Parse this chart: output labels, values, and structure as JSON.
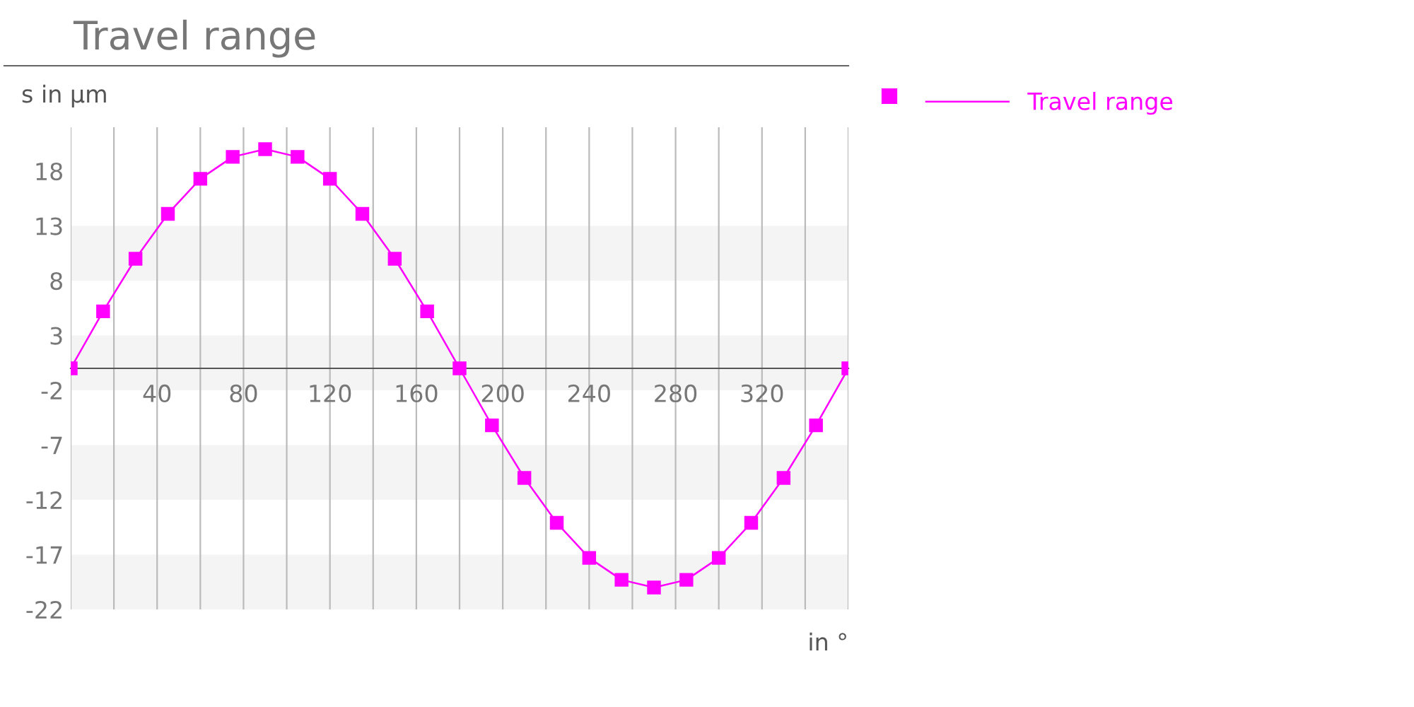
{
  "chart_data": {
    "type": "line",
    "title": "Travel range",
    "xlabel": "in °",
    "ylabel": "s in µm",
    "x": [
      0,
      15,
      30,
      45,
      60,
      75,
      90,
      105,
      120,
      135,
      150,
      165,
      180,
      195,
      210,
      225,
      240,
      255,
      270,
      285,
      300,
      315,
      330,
      345,
      360
    ],
    "series": [
      {
        "name": "Travel range",
        "color": "#ff00ff",
        "values": [
          0,
          5.2,
          10,
          14.1,
          17.3,
          19.3,
          20,
          19.3,
          17.3,
          14.1,
          10,
          5.2,
          0,
          -5.2,
          -10,
          -14.1,
          -17.3,
          -19.3,
          -20,
          -19.3,
          -17.3,
          -14.1,
          -10,
          -5.2,
          0
        ]
      }
    ],
    "marker": "square",
    "line_style": "solid",
    "xlim": [
      0,
      360
    ],
    "xticks": [
      {
        "value": 0,
        "label": null
      },
      {
        "value": 20,
        "label": null
      },
      40,
      {
        "value": 60,
        "label": null
      },
      80,
      {
        "value": 100,
        "label": null
      },
      120,
      {
        "value": 140,
        "label": null
      },
      160,
      {
        "value": 180,
        "label": null
      },
      200,
      {
        "value": 220,
        "label": null
      },
      240,
      {
        "value": 260,
        "label": null
      },
      280,
      {
        "value": 300,
        "label": null
      },
      320,
      {
        "value": 340,
        "label": null
      },
      {
        "value": 360,
        "label": null
      }
    ],
    "ylim": [
      -22,
      22
    ],
    "yticks": [
      -22,
      -17,
      -12,
      -7,
      -2,
      3,
      8,
      13,
      18
    ],
    "bands": [
      {
        "axis": "y",
        "from": -22,
        "to": -17,
        "color": "#f4f4f4"
      },
      {
        "axis": "y",
        "from": -12,
        "to": -7,
        "color": "#f4f4f4"
      },
      {
        "axis": "y",
        "from": -2,
        "to": 3,
        "color": "#f4f4f4"
      },
      {
        "axis": "y",
        "from": 8,
        "to": 13,
        "color": "#f4f4f4"
      }
    ],
    "grid": "x",
    "legend": "top right"
  }
}
